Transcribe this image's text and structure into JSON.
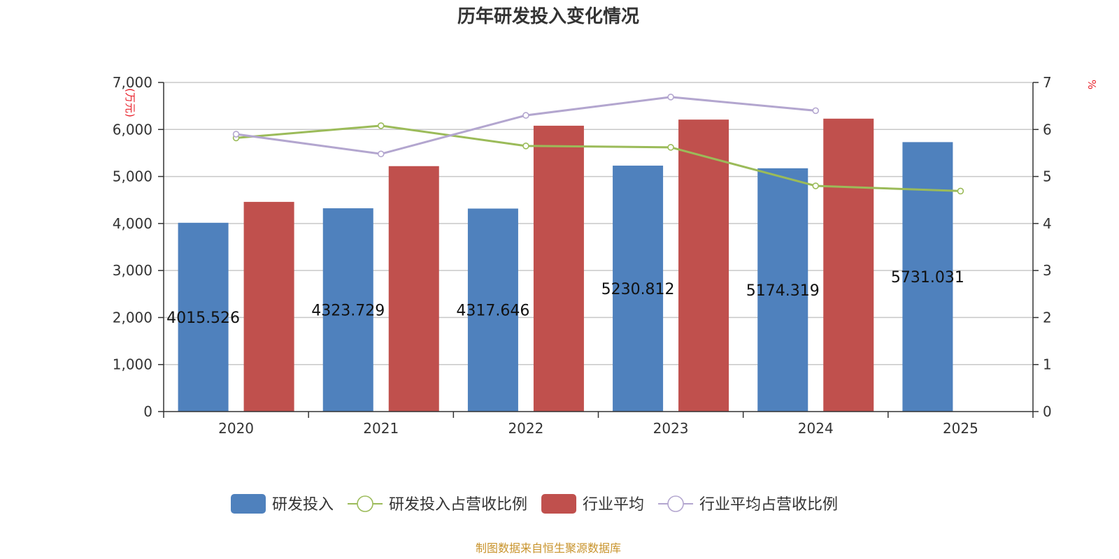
{
  "title": "历年研发投入变化情况",
  "source": "制图数据来自恒生聚源数据库",
  "chart_data": {
    "type": "bar",
    "title": "历年研发投入变化情况",
    "categories": [
      "2020",
      "2021",
      "2022",
      "2023",
      "2024",
      "2025"
    ],
    "y_left": {
      "label": "(万元)",
      "min": 0,
      "max": 7000,
      "ticks": [
        0,
        1000,
        2000,
        3000,
        4000,
        5000,
        6000,
        7000
      ],
      "tick_labels": [
        "0",
        "1,000",
        "2,000",
        "3,000",
        "4,000",
        "5,000",
        "6,000",
        "7,000"
      ]
    },
    "y_right": {
      "label": "%",
      "min": 0,
      "max": 7,
      "ticks": [
        0,
        1,
        2,
        3,
        4,
        5,
        6,
        7
      ],
      "tick_labels": [
        "0",
        "1",
        "2",
        "3",
        "4",
        "5",
        "6",
        "7"
      ]
    },
    "grid": true,
    "legend_position": "bottom",
    "series": [
      {
        "name": "研发投入",
        "kind": "bar",
        "axis": "left",
        "color": "#4f81bd",
        "values": [
          4015.526,
          4323.729,
          4317.646,
          5230.812,
          5174.319,
          5731.031
        ],
        "labels": [
          "4015.526",
          "4323.729",
          "4317.646",
          "5230.812",
          "5174.319",
          "5731.031"
        ]
      },
      {
        "name": "研发投入占营收比例",
        "kind": "line",
        "axis": "right",
        "color": "#9bbb59",
        "values": [
          5.82,
          6.08,
          5.65,
          5.62,
          4.8,
          4.69
        ]
      },
      {
        "name": "行业平均",
        "kind": "bar",
        "axis": "left",
        "color": "#c0504d",
        "values": [
          4460,
          5220,
          6080,
          6210,
          6230,
          null
        ]
      },
      {
        "name": "行业平均占营收比例",
        "kind": "line",
        "axis": "right",
        "color": "#b3a6cf",
        "values": [
          5.9,
          5.48,
          6.3,
          6.69,
          6.4,
          null
        ]
      }
    ]
  }
}
